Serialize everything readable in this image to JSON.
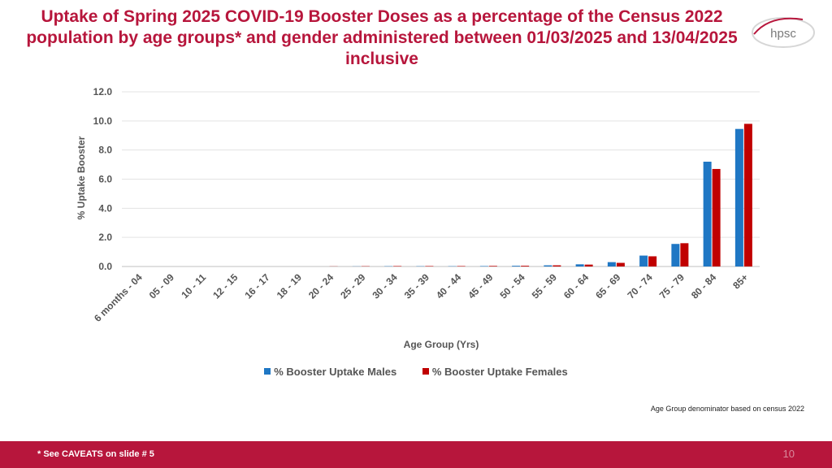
{
  "slide": {
    "title": "Uptake of Spring 2025 COVID-19 Booster Doses as a percentage of the Census 2022 population by age groups* and gender administered between 01/03/2025 and 13/04/2025 inclusive",
    "logo_text": "hpsc",
    "note": "Age Group denominator based on census 2022",
    "footer_note": "* See CAVEATS on slide # 5",
    "page_number": "10"
  },
  "colors": {
    "brand": "#b7163c",
    "males": "#1f77c4",
    "females": "#c00000"
  },
  "chart_data": {
    "type": "bar",
    "title": "",
    "xlabel": "Age Group (Yrs)",
    "ylabel": "% Uptake Booster",
    "ylim": [
      0,
      12
    ],
    "yticks": [
      "0.0",
      "2.0",
      "4.0",
      "6.0",
      "8.0",
      "10.0",
      "12.0"
    ],
    "grid": true,
    "legend_position": "bottom",
    "categories": [
      "6 months - 04",
      "05 - 09",
      "10 - 11",
      "12 - 15",
      "16 - 17",
      "18 - 19",
      "20 - 24",
      "25 - 29",
      "30 - 34",
      "35 - 39",
      "40 - 44",
      "45 - 49",
      "50 - 54",
      "55 - 59",
      "60 - 64",
      "65 - 69",
      "70 - 74",
      "75 - 79",
      "80 - 84",
      "85+"
    ],
    "series": [
      {
        "name": "% Booster Uptake Males",
        "values": [
          0.0,
          0.0,
          0.0,
          0.0,
          0.0,
          0.0,
          0.0,
          0.01,
          0.02,
          0.02,
          0.02,
          0.03,
          0.05,
          0.08,
          0.15,
          0.3,
          0.75,
          1.55,
          7.2,
          9.45
        ]
      },
      {
        "name": "% Booster Uptake Females",
        "values": [
          0.0,
          0.0,
          0.0,
          0.0,
          0.0,
          0.0,
          0.01,
          0.02,
          0.03,
          0.03,
          0.03,
          0.04,
          0.05,
          0.08,
          0.13,
          0.25,
          0.7,
          1.6,
          6.7,
          9.8
        ]
      }
    ]
  }
}
